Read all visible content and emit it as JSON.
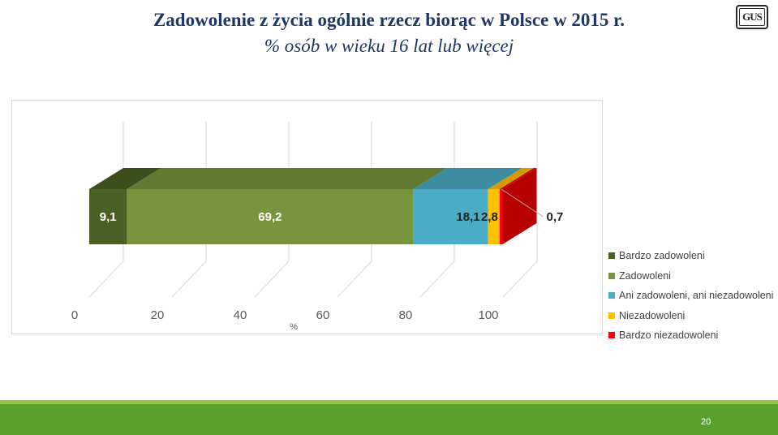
{
  "header": {
    "title": "Zadowolenie z życia ogólnie rzecz biorąc w Polsce w 2015 r.",
    "subtitle": "% osób w wieku 16 lat lub więcej",
    "logo_text": "GUS"
  },
  "chart_data": {
    "type": "bar",
    "orientation": "horizontal-stacked-100",
    "xlabel": "%",
    "ylabel": "",
    "xlim": [
      0,
      100
    ],
    "x_ticks": [
      "0",
      "20",
      "40",
      "60",
      "80",
      "100"
    ],
    "series": [
      {
        "name": "Bardzo zadowoleni",
        "value": 9.1,
        "label": "9,1",
        "color": "#4a5f23"
      },
      {
        "name": "Zadowoleni",
        "value": 69.2,
        "label": "69,2",
        "color": "#77933c"
      },
      {
        "name": "Ani zadowoleni, ani niezadowoleni",
        "value": 18.1,
        "label": "18,1",
        "color": "#4bacc6"
      },
      {
        "name": "Niezadowoleni",
        "value": 2.8,
        "label": "2,8",
        "color": "#ffc000"
      },
      {
        "name": "Bardzo niezadowoleni",
        "value": 0.7,
        "label": "0,7",
        "color": "#ff0000"
      }
    ],
    "legend_position": "right"
  },
  "footer": {
    "page_number": "20"
  }
}
